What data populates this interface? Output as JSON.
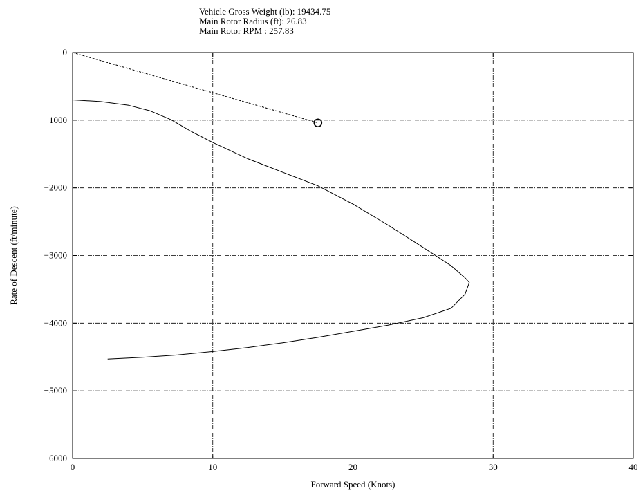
{
  "title_lines": [
    "Vehicle Gross Weight (lb): 19434.75",
    "Main Rotor Radius (ft): 26.83",
    "Main Rotor RPM : 257.83"
  ],
  "chart_data": {
    "type": "line",
    "xlabel": "Forward Speed (Knots)",
    "ylabel": "Rate of Descent (ft/minute)",
    "xlim": [
      0,
      40
    ],
    "ylim": [
      -6000,
      0
    ],
    "xticks": [
      0,
      10,
      20,
      30,
      40
    ],
    "yticks": [
      0,
      -1000,
      -2000,
      -3000,
      -4000,
      -5000,
      -6000
    ],
    "x_tick_labels": [
      "0",
      "10",
      "20",
      "30",
      "40"
    ],
    "y_tick_labels": [
      "0",
      "−1000",
      "−2000",
      "−3000",
      "−4000",
      "−5000",
      "−6000"
    ],
    "grid": true,
    "series": [
      {
        "style": "solid",
        "color": "#000000",
        "x": [
          0,
          2,
          4,
          5.5,
          7,
          8.5,
          10,
          12.5,
          15,
          17.5,
          20,
          22.5,
          25,
          27,
          28,
          28.3,
          28,
          27,
          25,
          22.5,
          20,
          17.5,
          15,
          12.5,
          10,
          7.5,
          5,
          2.5
        ],
        "y": [
          -700,
          -725,
          -780,
          -860,
          -990,
          -1170,
          -1330,
          -1570,
          -1770,
          -1970,
          -2240,
          -2550,
          -2880,
          -3150,
          -3330,
          -3400,
          -3570,
          -3780,
          -3920,
          -4030,
          -4120,
          -4210,
          -4290,
          -4360,
          -4420,
          -4470,
          -4505,
          -4530
        ]
      },
      {
        "style": "dashed",
        "color": "#000000",
        "x": [
          0,
          17.5
        ],
        "y": [
          0,
          -1040
        ]
      }
    ],
    "annotations": [
      {
        "type": "circle-marker",
        "x": 17.5,
        "y": -1040
      }
    ]
  }
}
